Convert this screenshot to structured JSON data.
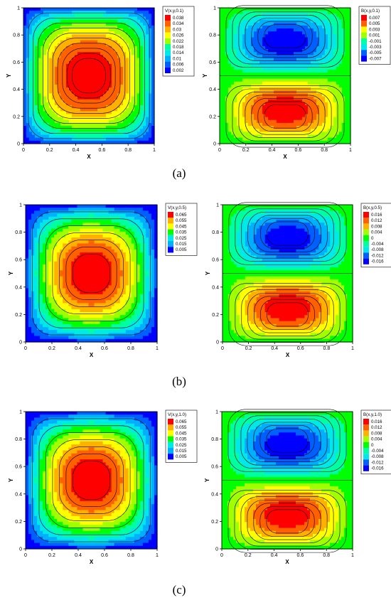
{
  "chart_data": [
    {
      "type": "heatmap",
      "field": "V",
      "title": "",
      "legend_title": "V(x,y,0.1)",
      "legend_levels": [
        "0.038",
        "0.034",
        "0.03",
        "0.026",
        "0.022",
        "0.018",
        "0.014",
        "0.01",
        "0.006",
        "0.002"
      ],
      "xlabel": "X",
      "ylabel": "Y",
      "xlim": [
        0,
        1
      ],
      "ylim": [
        0,
        1
      ],
      "x_ticks": [
        "0",
        "0.2",
        "0.4",
        "0.6",
        "0.8",
        "1"
      ],
      "y_ticks": [
        "0",
        "0.2",
        "0.4",
        "0.6",
        "0.8",
        "1"
      ],
      "peak": 0.04,
      "peak_location": [
        0.5,
        0.5
      ],
      "legend_placement": "right"
    },
    {
      "type": "heatmap",
      "field": "B",
      "title": "",
      "legend_title": "B(x,y,0.1)",
      "legend_levels": [
        "0.007",
        "0.005",
        "0.003",
        "0.001",
        "-0.001",
        "-0.003",
        "-0.005",
        "-0.007"
      ],
      "xlabel": "X",
      "ylabel": "Y",
      "xlim": [
        0,
        1
      ],
      "ylim": [
        0,
        1
      ],
      "x_ticks": [
        "0",
        "0.2",
        "0.4",
        "0.6",
        "0.8",
        "1"
      ],
      "y_ticks": [
        "0",
        "0.2",
        "0.4",
        "0.6",
        "0.8",
        "1"
      ],
      "max": 0.008,
      "max_location": [
        0.5,
        0.12
      ],
      "min": -0.008,
      "min_location": [
        0.5,
        0.88
      ],
      "legend_placement": "right"
    },
    {
      "type": "heatmap",
      "field": "V",
      "title": "",
      "legend_title": "V(x,y,0.5)",
      "legend_levels": [
        "0.065",
        "0.055",
        "0.045",
        "0.035",
        "0.025",
        "0.015",
        "0.005"
      ],
      "xlabel": "X",
      "ylabel": "Y",
      "xlim": [
        0,
        1
      ],
      "ylim": [
        0,
        1
      ],
      "x_ticks": [
        "0",
        "0.2",
        "0.4",
        "0.6",
        "0.8",
        "1"
      ],
      "y_ticks": [
        "0",
        "0.2",
        "0.4",
        "0.6",
        "0.8",
        "1"
      ],
      "peak": 0.072,
      "peak_location": [
        0.5,
        0.5
      ],
      "legend_placement": "right"
    },
    {
      "type": "heatmap",
      "field": "B",
      "title": "",
      "legend_title": "B(x,y,0.5)",
      "legend_levels": [
        "0.016",
        "0.012",
        "0.008",
        "0.004",
        "0",
        "-0.004",
        "-0.008",
        "-0.012",
        "-0.016"
      ],
      "xlabel": "X",
      "ylabel": "Y",
      "xlim": [
        0,
        1
      ],
      "ylim": [
        0,
        1
      ],
      "x_ticks": [
        "0",
        "0.2",
        "0.4",
        "0.6",
        "0.8",
        "1"
      ],
      "y_ticks": [
        "0",
        "0.2",
        "0.4",
        "0.6",
        "0.8",
        "1"
      ],
      "max": 0.018,
      "max_location": [
        0.5,
        0.15
      ],
      "min": -0.018,
      "min_location": [
        0.5,
        0.85
      ],
      "legend_placement": "right"
    },
    {
      "type": "heatmap",
      "field": "V",
      "title": "",
      "legend_title": "V(x,y,1.0)",
      "legend_levels": [
        "0.065",
        "0.055",
        "0.045",
        "0.035",
        "0.025",
        "0.015",
        "0.005"
      ],
      "xlabel": "X",
      "ylabel": "Y",
      "xlim": [
        0,
        1
      ],
      "ylim": [
        0,
        1
      ],
      "x_ticks": [
        "0",
        "0.2",
        "0.4",
        "0.6",
        "0.8",
        "1"
      ],
      "y_ticks": [
        "0",
        "0.2",
        "0.4",
        "0.6",
        "0.8",
        "1"
      ],
      "peak": 0.072,
      "peak_location": [
        0.5,
        0.5
      ],
      "legend_placement": "right"
    },
    {
      "type": "heatmap",
      "field": "B",
      "title": "",
      "legend_title": "B(x,y,1.0)",
      "legend_levels": [
        "0.016",
        "0.012",
        "0.008",
        "0.004",
        "0",
        "-0.004",
        "-0.008",
        "-0.012",
        "-0.016"
      ],
      "xlabel": "X",
      "ylabel": "Y",
      "xlim": [
        0,
        1
      ],
      "ylim": [
        0,
        1
      ],
      "x_ticks": [
        "0",
        "0.2",
        "0.4",
        "0.6",
        "0.8",
        "1"
      ],
      "y_ticks": [
        "0",
        "0.2",
        "0.4",
        "0.6",
        "0.8",
        "1"
      ],
      "max": 0.018,
      "max_location": [
        0.5,
        0.15
      ],
      "min": -0.018,
      "min_location": [
        0.5,
        0.85
      ],
      "legend_placement": "right"
    }
  ],
  "captions": [
    "(a)",
    "(b)",
    "(c)"
  ],
  "colormap": [
    "#0000ff",
    "#0060ff",
    "#00b0ff",
    "#00e8e8",
    "#00ffa0",
    "#00ff00",
    "#a0ff00",
    "#ffff00",
    "#ffb000",
    "#ff6000",
    "#ff0000"
  ]
}
